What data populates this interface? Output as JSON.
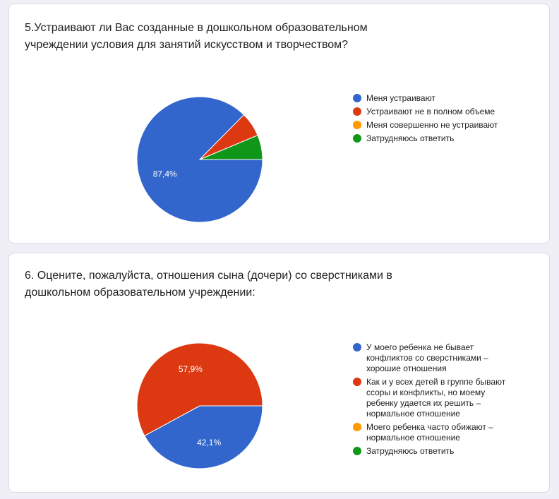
{
  "questions": [
    {
      "title": "5.Устраивают ли Вас созданные в дошкольном образовательном учреждении условия для занятий искусством и творчеством?",
      "chart_data": {
        "type": "pie",
        "title": "5.Устраивают ли Вас созданные в дошкольном образовательном учреждении условия для занятий искусством и творчеством?",
        "categories": [
          "Меня устраивают",
          "Устраивают не в полном объеме",
          "Меня совершенно не устраивают",
          "Затрудняюсь ответить"
        ],
        "values": [
          87.4,
          6.3,
          0,
          6.3
        ],
        "data_labels": [
          "87,4%",
          "",
          "",
          ""
        ],
        "colors": [
          "#3366cc",
          "#dc3912",
          "#ff9900",
          "#109618"
        ],
        "legend_position": "right"
      }
    },
    {
      "title": "6. Оцените, пожалуйста, отношения сына (дочери) со сверстниками в дошкольном образовательном учреждении:",
      "chart_data": {
        "type": "pie",
        "title": "6. Оцените, пожалуйста, отношения сына (дочери) со сверстниками в дошкольном образовательном учреждении:",
        "categories": [
          "У моего ребенка не бывает конфликтов со сверстниками – хорошие отношения",
          "Как и у всех детей в группе бывают ссоры и конфликты, но моему ребенку удается их решить – нормальное отношение",
          "Моего ребенка часто обижают – нормальное отношение",
          "Затрудняюсь ответить"
        ],
        "values": [
          42.1,
          57.9,
          0,
          0
        ],
        "data_labels": [
          "42,1%",
          "57,9%",
          "",
          ""
        ],
        "colors": [
          "#3366cc",
          "#dc3912",
          "#ff9900",
          "#109618"
        ],
        "legend_position": "right"
      }
    }
  ]
}
